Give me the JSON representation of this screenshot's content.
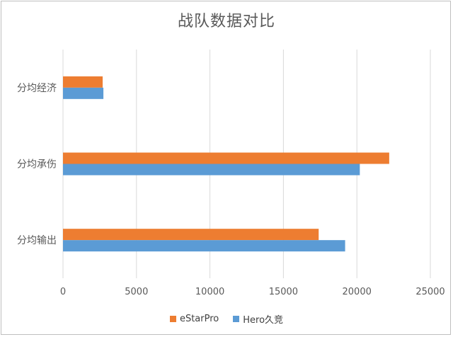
{
  "chart_data": {
    "type": "bar",
    "orientation": "horizontal",
    "title": "战队数据对比",
    "categories": [
      "分均经济",
      "分均承伤",
      "分均输出"
    ],
    "series": [
      {
        "name": "eStarPro",
        "color": "#ED7D31",
        "values": [
          2700,
          22200,
          17400
        ]
      },
      {
        "name": "Hero久竞",
        "color": "#5B9BD5",
        "values": [
          2750,
          20200,
          19200
        ]
      }
    ],
    "xlim": [
      0,
      25000
    ],
    "xticks": [
      0,
      5000,
      10000,
      15000,
      20000,
      25000
    ],
    "grid": true,
    "legend_position": "bottom"
  }
}
